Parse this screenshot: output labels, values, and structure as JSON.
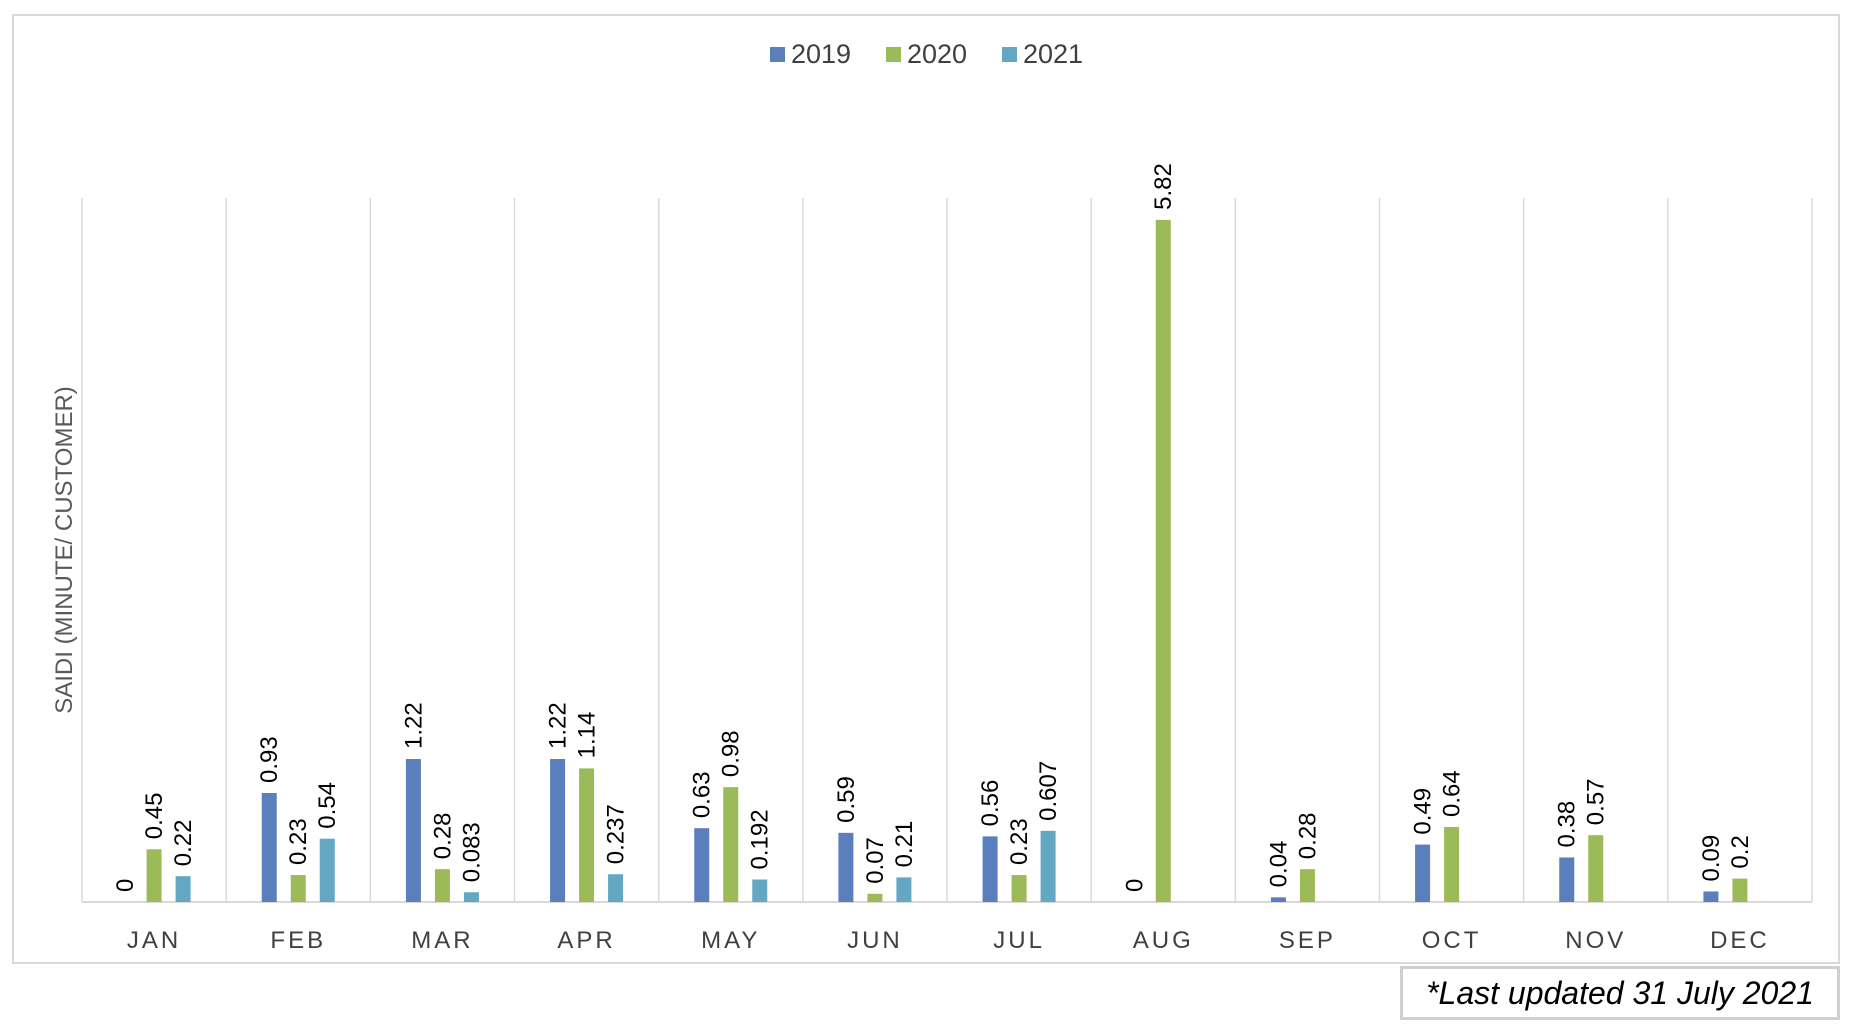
{
  "chart_data": {
    "type": "bar",
    "title": "",
    "xlabel": "",
    "ylabel": "SAIDI (MINUTE/ CUSTOMER)",
    "ylim": [
      0,
      7
    ],
    "grid": "vertical separators",
    "legend_position": "top-center",
    "categories": [
      "JAN",
      "FEB",
      "MAR",
      "APR",
      "MAY",
      "JUN",
      "JUL",
      "AUG",
      "SEP",
      "OCT",
      "NOV",
      "DEC"
    ],
    "series": [
      {
        "name": "2019",
        "color": "#5b7fbd",
        "values": [
          0,
          0.93,
          1.22,
          1.22,
          0.63,
          0.59,
          0.56,
          0,
          0.04,
          0.49,
          0.38,
          0.09
        ],
        "labels": [
          "0",
          "0.93",
          "1.22",
          "1.22",
          "0.63",
          "0.59",
          "0.56",
          "0",
          "0.04",
          "0.49",
          "0.38",
          "0.09"
        ]
      },
      {
        "name": "2020",
        "color": "#9bbb59",
        "values": [
          0.45,
          0.23,
          0.28,
          1.14,
          0.98,
          0.07,
          0.23,
          5.82,
          0.28,
          0.64,
          0.57,
          0.2
        ],
        "labels": [
          "0.45",
          "0.23",
          "0.28",
          "1.14",
          "0.98",
          "0.07",
          "0.23",
          "5.82",
          "0.28",
          "0.64",
          "0.57",
          "0.2"
        ]
      },
      {
        "name": "2021",
        "color": "#63a7c3",
        "values": [
          0.22,
          0.54,
          0.083,
          0.237,
          0.192,
          0.21,
          0.607,
          null,
          null,
          null,
          null,
          null
        ],
        "labels": [
          "0.22",
          "0.54",
          "0.083",
          "0.237",
          "0.192",
          "0.21",
          "0.607",
          null,
          null,
          null,
          null,
          null
        ]
      }
    ]
  },
  "note": "*Last updated 31 July 2021"
}
